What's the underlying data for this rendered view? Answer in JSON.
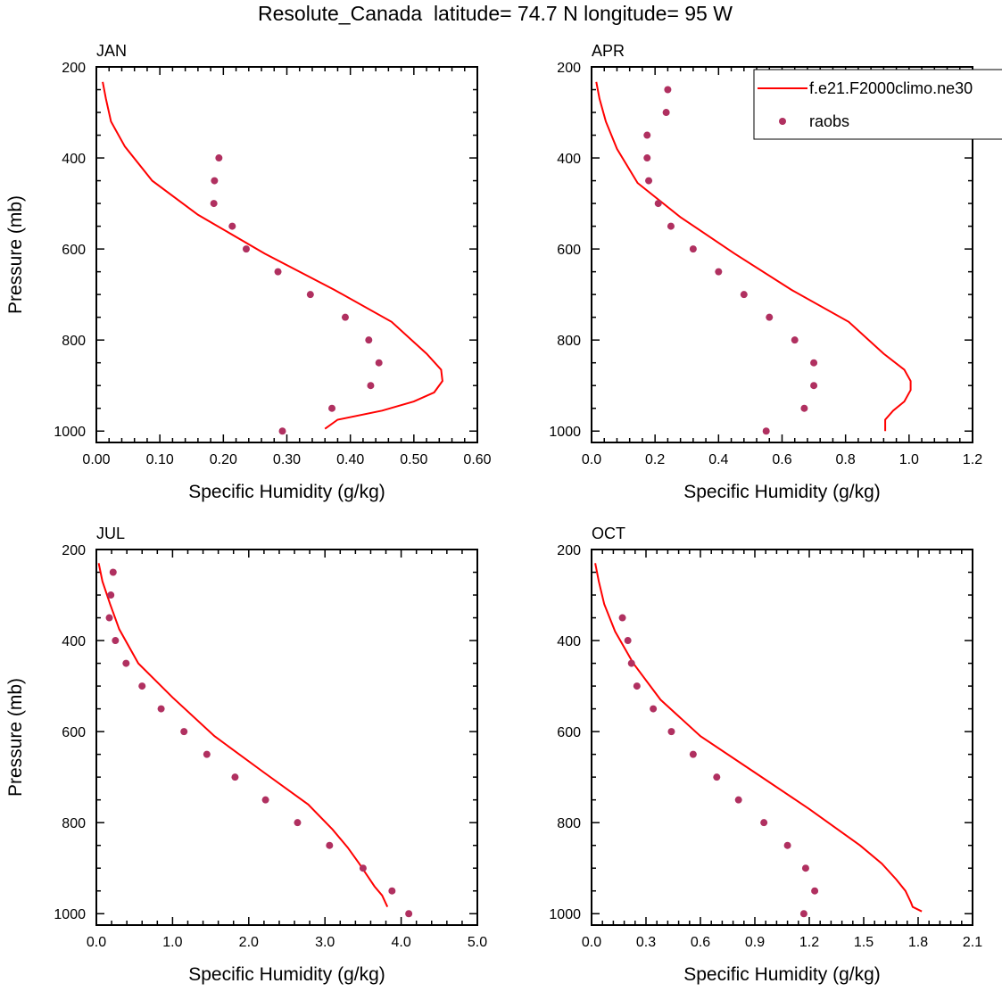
{
  "figure": {
    "title": "Resolute_Canada  latitude= 74.7 N longitude= 95 W"
  },
  "colors": {
    "model_line": "#ff0000",
    "obs_marker": "#b03060",
    "axis": "#000000"
  },
  "legend": {
    "placement": "top-right of APR panel",
    "entries": [
      {
        "label": "f.e21.F2000climo.ne30",
        "style": "line"
      },
      {
        "label": "raobs",
        "style": "marker"
      }
    ]
  },
  "chart_data": [
    {
      "type": "line",
      "panel_label": "JAN",
      "xlabel": "Specific Humidity (g/kg)",
      "ylabel": "Pressure (mb)",
      "xlim": [
        0,
        0.6
      ],
      "ylim": [
        1025,
        200
      ],
      "x_ticks": [
        0,
        0.1,
        0.2,
        0.3,
        0.4,
        0.5,
        0.6
      ],
      "x_tick_labels": [
        "0.00",
        "0.10",
        "0.20",
        "0.30",
        "0.40",
        "0.50",
        "0.60"
      ],
      "y_ticks": [
        200,
        400,
        600,
        800,
        1000
      ],
      "y_tick_labels": [
        "200",
        "400",
        "600",
        "800",
        "1000"
      ],
      "series": [
        {
          "name": "f.e21.F2000climo.ne30",
          "kind": "line",
          "x": [
            0.01,
            0.015,
            0.023,
            0.045,
            0.088,
            0.16,
            0.265,
            0.375,
            0.465,
            0.52,
            0.543,
            0.545,
            0.532,
            0.5,
            0.45,
            0.38,
            0.36
          ],
          "y": [
            233,
            270,
            320,
            375,
            450,
            525,
            610,
            690,
            760,
            830,
            865,
            890,
            915,
            935,
            955,
            975,
            995
          ]
        },
        {
          "name": "raobs",
          "kind": "marker",
          "x": [
            0.193,
            0.186,
            0.185,
            0.214,
            0.236,
            0.286,
            0.337,
            0.392,
            0.429,
            0.445,
            0.432,
            0.371,
            0.293
          ],
          "y": [
            400,
            450,
            500,
            550,
            600,
            650,
            700,
            750,
            800,
            850,
            900,
            950,
            1000
          ]
        }
      ]
    },
    {
      "type": "line",
      "panel_label": "APR",
      "xlabel": "Specific Humidity (g/kg)",
      "ylabel": "",
      "xlim": [
        0,
        1.2
      ],
      "ylim": [
        1025,
        200
      ],
      "x_ticks": [
        0,
        0.2,
        0.4,
        0.6,
        0.8,
        1.0,
        1.2
      ],
      "x_tick_labels": [
        "0.0",
        "0.2",
        "0.4",
        "0.6",
        "0.8",
        "1.0",
        "1.2"
      ],
      "y_ticks": [
        200,
        400,
        600,
        800,
        1000
      ],
      "y_tick_labels": [
        "200",
        "400",
        "600",
        "800",
        "1000"
      ],
      "series": [
        {
          "name": "f.e21.F2000climo.ne30",
          "kind": "line",
          "x": [
            0.015,
            0.025,
            0.045,
            0.08,
            0.145,
            0.28,
            0.45,
            0.63,
            0.81,
            0.92,
            0.985,
            1.005,
            1.005,
            0.985,
            0.95,
            0.925,
            0.925
          ],
          "y": [
            233,
            270,
            320,
            380,
            455,
            530,
            610,
            690,
            760,
            830,
            865,
            890,
            910,
            935,
            955,
            975,
            1000
          ]
        },
        {
          "name": "raobs",
          "kind": "marker",
          "x": [
            0.24,
            0.235,
            0.175,
            0.175,
            0.18,
            0.21,
            0.25,
            0.32,
            0.4,
            0.48,
            0.56,
            0.64,
            0.7,
            0.7,
            0.67,
            0.55
          ],
          "y": [
            250,
            300,
            350,
            400,
            450,
            500,
            550,
            600,
            650,
            700,
            750,
            800,
            850,
            900,
            950,
            1000
          ]
        }
      ]
    },
    {
      "type": "line",
      "panel_label": "JUL",
      "xlabel": "Specific Humidity (g/kg)",
      "ylabel": "Pressure (mb)",
      "xlim": [
        0,
        5.0
      ],
      "ylim": [
        1025,
        200
      ],
      "x_ticks": [
        0,
        1,
        2,
        3,
        4,
        5
      ],
      "x_tick_labels": [
        "0.0",
        "1.0",
        "2.0",
        "3.0",
        "4.0",
        "5.0"
      ],
      "y_ticks": [
        200,
        400,
        600,
        800,
        1000
      ],
      "y_tick_labels": [
        "200",
        "400",
        "600",
        "800",
        "1000"
      ],
      "series": [
        {
          "name": "f.e21.F2000climo.ne30",
          "kind": "line",
          "x": [
            0.03,
            0.08,
            0.18,
            0.3,
            0.55,
            1.0,
            1.55,
            2.2,
            2.78,
            3.1,
            3.3,
            3.45,
            3.55,
            3.65,
            3.75,
            3.82
          ],
          "y": [
            230,
            270,
            320,
            375,
            450,
            525,
            610,
            690,
            760,
            815,
            855,
            890,
            915,
            940,
            960,
            985
          ]
        },
        {
          "name": "raobs",
          "kind": "marker",
          "x": [
            0.22,
            0.19,
            0.17,
            0.25,
            0.39,
            0.6,
            0.85,
            1.15,
            1.45,
            1.82,
            2.22,
            2.64,
            3.06,
            3.5,
            3.88,
            4.1
          ],
          "y": [
            250,
            300,
            350,
            400,
            450,
            500,
            550,
            600,
            650,
            700,
            750,
            800,
            850,
            900,
            950,
            1000
          ]
        }
      ]
    },
    {
      "type": "line",
      "panel_label": "OCT",
      "xlabel": "Specific Humidity (g/kg)",
      "ylabel": "",
      "xlim": [
        0,
        2.1
      ],
      "ylim": [
        1025,
        200
      ],
      "x_ticks": [
        0,
        0.3,
        0.6,
        0.9,
        1.2,
        1.5,
        1.8,
        2.1
      ],
      "x_tick_labels": [
        "0.0",
        "0.3",
        "0.6",
        "0.9",
        "1.2",
        "1.5",
        "1.8",
        "2.1"
      ],
      "y_ticks": [
        200,
        400,
        600,
        800,
        1000
      ],
      "y_tick_labels": [
        "200",
        "400",
        "600",
        "800",
        "1000"
      ],
      "series": [
        {
          "name": "f.e21.F2000climo.ne30",
          "kind": "line",
          "x": [
            0.02,
            0.04,
            0.07,
            0.13,
            0.23,
            0.38,
            0.6,
            0.9,
            1.2,
            1.48,
            1.6,
            1.68,
            1.73,
            1.76,
            1.77,
            1.82
          ],
          "y": [
            230,
            270,
            320,
            380,
            450,
            530,
            610,
            690,
            770,
            850,
            890,
            925,
            950,
            975,
            985,
            995
          ]
        },
        {
          "name": "raobs",
          "kind": "marker",
          "x": [
            0.17,
            0.2,
            0.22,
            0.25,
            0.34,
            0.44,
            0.56,
            0.69,
            0.81,
            0.95,
            1.08,
            1.18,
            1.23,
            1.17
          ],
          "y": [
            350,
            400,
            450,
            500,
            550,
            600,
            650,
            700,
            750,
            800,
            850,
            900,
            950,
            1000
          ]
        }
      ]
    }
  ]
}
